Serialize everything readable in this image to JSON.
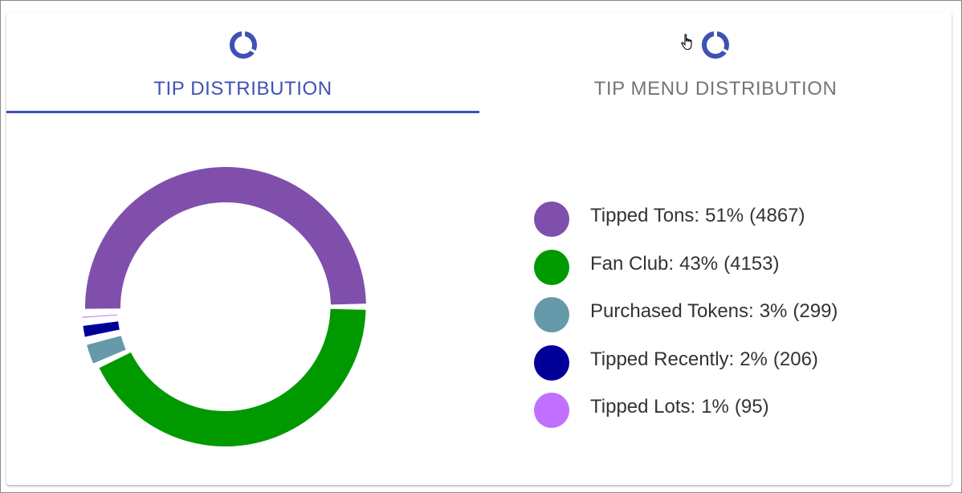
{
  "tabs": [
    {
      "label": "Tip Distribution",
      "icon": "donut-chart-icon",
      "active": true
    },
    {
      "label": "Tip Menu Distribution",
      "icon": "donut-chart-icon",
      "active": false
    }
  ],
  "colors": {
    "accent": "#3f51b5",
    "inactive_tab": "#757575"
  },
  "chart_data": {
    "type": "pie",
    "variant": "donut",
    "legend_position": "right",
    "slices": [
      {
        "name": "Tipped Tons",
        "percent": "51%",
        "value": 4867,
        "value_text": "(4867)",
        "color": "#804fac"
      },
      {
        "name": "Fan Club",
        "percent": "43%",
        "value": 4153,
        "value_text": "(4153)",
        "color": "#009900"
      },
      {
        "name": "Purchased Tokens",
        "percent": "3%",
        "value": 299,
        "value_text": "(299)",
        "color": "#6699aa"
      },
      {
        "name": "Tipped Recently",
        "percent": "2%",
        "value": 206,
        "value_text": "(206)",
        "color": "#000099"
      },
      {
        "name": "Tipped Lots",
        "percent": "1%",
        "value": 95,
        "value_text": "(95)",
        "color": "#c16ffe"
      }
    ]
  }
}
